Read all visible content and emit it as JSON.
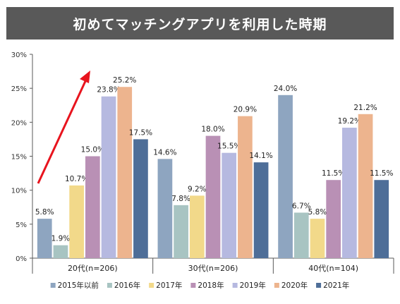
{
  "chart_data": {
    "type": "bar",
    "title": "初めてマッチングアプリを利用した時期",
    "categories": [
      "20代(n=206)",
      "30代(n=206)",
      "40代(n=104)"
    ],
    "series": [
      {
        "name": "2015年以前",
        "color": "#8EA5C0",
        "values": [
          5.8,
          14.6,
          24.0
        ]
      },
      {
        "name": "2016年",
        "color": "#A8C4C2",
        "values": [
          1.9,
          7.8,
          6.7
        ]
      },
      {
        "name": "2017年",
        "color": "#F2D98A",
        "values": [
          10.7,
          9.2,
          5.8
        ]
      },
      {
        "name": "2018年",
        "color": "#B990B5",
        "values": [
          15.0,
          18.0,
          11.5
        ]
      },
      {
        "name": "2019年",
        "color": "#B6B9E0",
        "values": [
          23.8,
          15.5,
          19.2
        ]
      },
      {
        "name": "2020年",
        "color": "#EDB48E",
        "values": [
          25.2,
          20.9,
          21.2
        ]
      },
      {
        "name": "2021年",
        "color": "#4E6E98",
        "values": [
          17.5,
          14.1,
          11.5
        ]
      }
    ],
    "value_labels": [
      [
        "5.8%",
        "1.9%",
        "10.7%",
        "15.0%",
        "23.8%",
        "25.2%",
        "17.5%"
      ],
      [
        "14.6%",
        "7.8%",
        "9.2%",
        "18.0%",
        "15.5%",
        "20.9%",
        "14.1%"
      ],
      [
        "24.0%",
        "6.7%",
        "5.8%",
        "11.5%",
        "19.2%",
        "21.2%",
        "11.5%"
      ]
    ],
    "y_ticks": [
      "0%",
      "5%",
      "10%",
      "15%",
      "20%",
      "25%",
      "30%"
    ],
    "ylim": [
      0,
      30
    ],
    "grid": false,
    "legend_position": "bottom",
    "annotation": {
      "type": "red-arrow",
      "color": "#E8141E",
      "direction": "up-right"
    }
  }
}
